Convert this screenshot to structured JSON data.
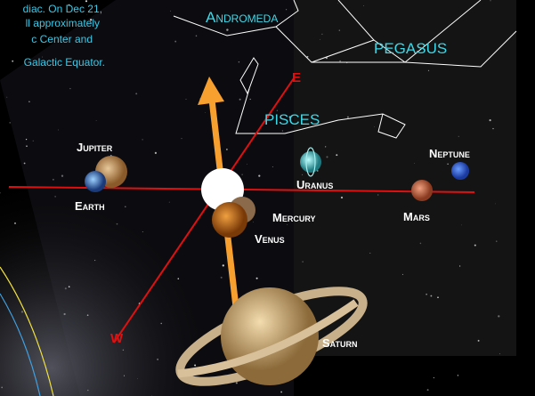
{
  "caption": {
    "lines": [
      "diac. On Dec 21,",
      "ll approximately",
      "c Center and",
      "Galactic Equator."
    ]
  },
  "constellations": {
    "andromeda": "Andromeda",
    "pegasus": "PEGASUS",
    "pisces": "PISCES"
  },
  "directions": {
    "east": "E",
    "west": "W"
  },
  "planets": {
    "jupiter": "Jupiter",
    "earth": "Earth",
    "mercury": "Mercury",
    "venus": "Venus",
    "uranus": "Uranus",
    "mars": "Mars",
    "neptune": "Neptune",
    "saturn": "Saturn"
  }
}
